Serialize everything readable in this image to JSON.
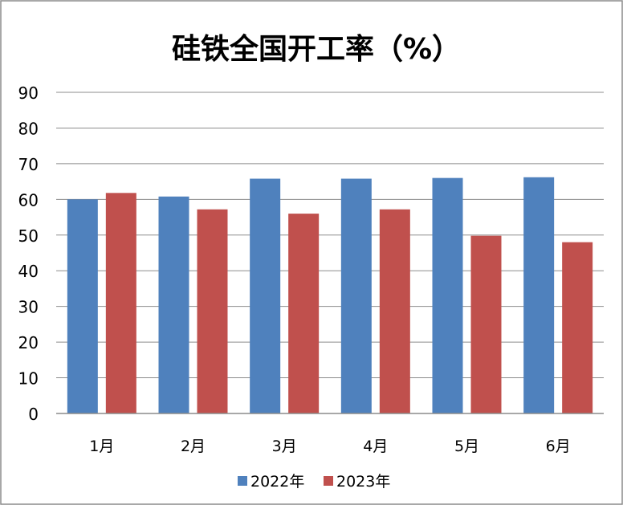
{
  "chart_data": {
    "type": "bar",
    "title": "硅铁全国开工率（%）",
    "categories": [
      "1月",
      "2月",
      "3月",
      "4月",
      "5月",
      "6月"
    ],
    "series": [
      {
        "name": "2022年",
        "color": "#4F81BD",
        "values": [
          60.0,
          60.8,
          65.8,
          65.8,
          66.0,
          66.2
        ]
      },
      {
        "name": "2023年",
        "color": "#C0504D",
        "values": [
          61.8,
          57.2,
          56.0,
          57.2,
          49.8,
          48.0
        ]
      }
    ],
    "y_ticks": [
      "0",
      "10",
      "20",
      "30",
      "40",
      "50",
      "60",
      "70",
      "80",
      "90"
    ],
    "ylim": [
      0,
      90
    ],
    "grid": true,
    "legend_position": "bottom"
  }
}
